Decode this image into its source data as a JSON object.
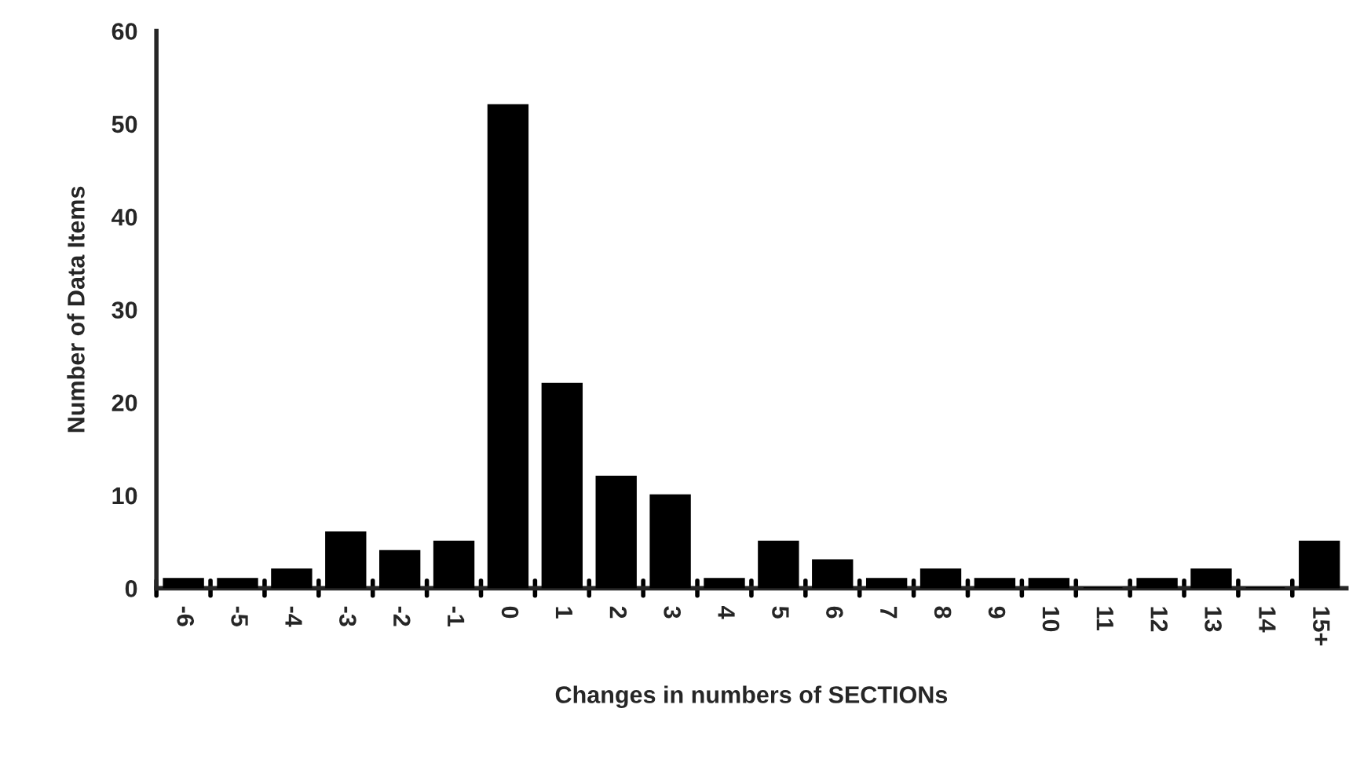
{
  "chart_data": {
    "type": "bar",
    "xlabel": "Changes in numbers of SECTIONs",
    "ylabel": "Number of Data Items",
    "categories": [
      "-6",
      "-5",
      "-4",
      "-3",
      "-2",
      "-1",
      "0",
      "1",
      "2",
      "3",
      "4",
      "5",
      "6",
      "7",
      "8",
      "9",
      "10",
      "11",
      "12",
      "13",
      "14",
      "15+"
    ],
    "values": [
      1,
      1,
      2,
      6,
      4,
      5,
      52,
      22,
      12,
      10,
      1,
      5,
      3,
      1,
      2,
      1,
      1,
      0,
      1,
      2,
      0,
      5
    ],
    "color": "#000000",
    "ylim": [
      0,
      60
    ],
    "yticks": [
      0,
      10,
      20,
      30,
      40,
      50,
      60
    ],
    "grid": false
  }
}
